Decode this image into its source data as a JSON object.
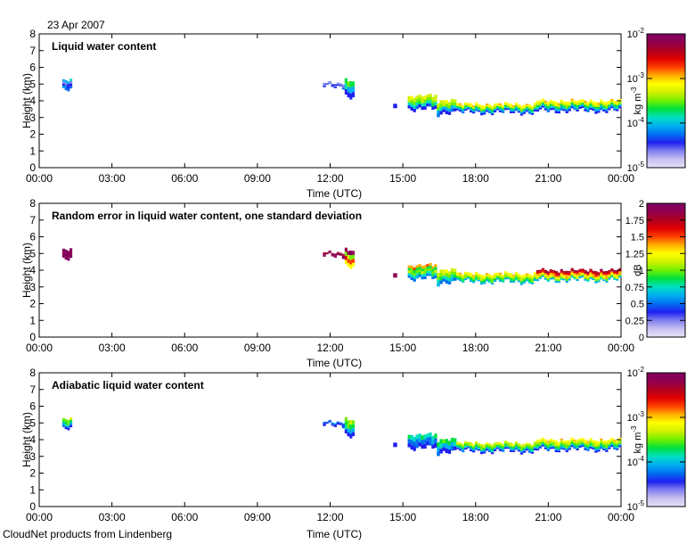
{
  "header": {
    "date": "23 Apr 2007"
  },
  "footer": {
    "credit": "CloudNet products from Lindenberg"
  },
  "colors": {
    "ramp": [
      "#e8e0f8",
      "#c8c0f0",
      "#8080f0",
      "#2020f0",
      "#0070f0",
      "#00b0f0",
      "#00e0c0",
      "#00e040",
      "#70f000",
      "#d0f000",
      "#ffff00",
      "#ffb000",
      "#ff4000",
      "#e00000",
      "#b00020",
      "#900050",
      "#800060"
    ]
  },
  "chart_data": [
    {
      "type": "heatmap",
      "title": "Liquid water content",
      "xlabel": "Time (UTC)",
      "ylabel": "Height (km)",
      "xticks": [
        "00:00",
        "03:00",
        "06:00",
        "09:00",
        "12:00",
        "15:00",
        "18:00",
        "21:00",
        "00:00"
      ],
      "xlim": [
        0,
        24
      ],
      "yticks": [
        "0",
        "1",
        "2",
        "3",
        "4",
        "5",
        "6",
        "7",
        "8"
      ],
      "ylim": [
        0,
        8
      ],
      "grid": false,
      "colorbar": {
        "label": "kg m",
        "label_exponent": "-3",
        "scale": "log",
        "range": [
          1e-05,
          0.01
        ],
        "ticks": [
          {
            "base": "10",
            "exp": "-5"
          },
          {
            "base": "10",
            "exp": "-4"
          },
          {
            "base": "10",
            "exp": "-3"
          },
          {
            "base": "10",
            "exp": "-2"
          }
        ]
      },
      "layers": [
        {
          "t_start": 0.95,
          "t_end": 1.35,
          "z_base": 4.6,
          "z_top": 5.2,
          "levels": [
            4,
            3,
            2,
            5
          ]
        },
        {
          "t_start": 11.7,
          "t_end": 12.6,
          "z_base": 4.85,
          "z_top": 5.05,
          "levels": [
            3,
            2,
            2
          ]
        },
        {
          "t_start": 12.6,
          "t_end": 13.0,
          "z_base": 4.2,
          "z_top": 5.2,
          "levels": [
            3,
            5,
            7
          ]
        },
        {
          "t_start": 14.6,
          "t_end": 14.75,
          "z_base": 3.7,
          "z_top": 3.9,
          "levels": [
            3
          ]
        },
        {
          "t_start": 15.2,
          "t_end": 16.4,
          "z_base": 3.5,
          "z_top": 4.3,
          "levels": [
            3,
            6,
            8,
            9
          ]
        },
        {
          "t_start": 16.4,
          "t_end": 17.2,
          "z_base": 3.2,
          "z_top": 4.0,
          "levels": [
            3,
            5,
            8,
            9
          ]
        },
        {
          "t_start": 17.2,
          "t_end": 20.5,
          "z_base": 3.3,
          "z_top": 3.8,
          "levels": [
            3,
            5,
            7,
            9,
            10
          ]
        },
        {
          "t_start": 20.5,
          "t_end": 24.0,
          "z_base": 3.4,
          "z_top": 4.0,
          "levels": [
            3,
            5,
            7,
            9,
            10
          ]
        }
      ]
    },
    {
      "type": "heatmap",
      "title": "Random error in liquid water content, one standard deviation",
      "xlabel": "Time (UTC)",
      "ylabel": "Height (km)",
      "xticks": [
        "00:00",
        "03:00",
        "06:00",
        "09:00",
        "12:00",
        "15:00",
        "18:00",
        "21:00",
        "00:00"
      ],
      "xlim": [
        0,
        24
      ],
      "yticks": [
        "0",
        "1",
        "2",
        "3",
        "4",
        "5",
        "6",
        "7",
        "8"
      ],
      "ylim": [
        0,
        8
      ],
      "grid": false,
      "colorbar": {
        "label": "dB",
        "label_exponent": "",
        "scale": "linear",
        "range": [
          0,
          2
        ],
        "ticks": [
          {
            "base": "0",
            "exp": ""
          },
          {
            "base": "0.25",
            "exp": ""
          },
          {
            "base": "0.5",
            "exp": ""
          },
          {
            "base": "0.75",
            "exp": ""
          },
          {
            "base": "1",
            "exp": ""
          },
          {
            "base": "1.25",
            "exp": ""
          },
          {
            "base": "1.5",
            "exp": ""
          },
          {
            "base": "1.75",
            "exp": ""
          },
          {
            "base": "2",
            "exp": ""
          }
        ]
      },
      "layers": [
        {
          "t_start": 0.95,
          "t_end": 1.35,
          "z_base": 4.6,
          "z_top": 5.2,
          "levels": [
            16,
            15,
            16
          ]
        },
        {
          "t_start": 11.7,
          "t_end": 12.6,
          "z_base": 4.85,
          "z_top": 5.05,
          "levels": [
            15,
            16,
            14
          ]
        },
        {
          "t_start": 12.6,
          "t_end": 13.0,
          "z_base": 4.2,
          "z_top": 5.2,
          "levels": [
            10,
            12,
            8,
            15
          ]
        },
        {
          "t_start": 14.6,
          "t_end": 14.75,
          "z_base": 3.7,
          "z_top": 3.9,
          "levels": [
            15
          ]
        },
        {
          "t_start": 15.2,
          "t_end": 16.4,
          "z_base": 3.5,
          "z_top": 4.3,
          "levels": [
            4,
            6,
            8,
            7,
            11
          ]
        },
        {
          "t_start": 16.4,
          "t_end": 17.2,
          "z_base": 3.2,
          "z_top": 4.0,
          "levels": [
            4,
            6,
            8,
            9
          ]
        },
        {
          "t_start": 17.2,
          "t_end": 20.5,
          "z_base": 3.3,
          "z_top": 3.8,
          "levels": [
            5,
            7,
            8,
            9,
            10
          ]
        },
        {
          "t_start": 20.5,
          "t_end": 24.0,
          "z_base": 3.4,
          "z_top": 4.0,
          "levels": [
            5,
            8,
            10,
            11,
            13,
            14
          ]
        }
      ]
    },
    {
      "type": "heatmap",
      "title": "Adiabatic liquid water content",
      "xlabel": "Time (UTC)",
      "ylabel": "Height (km)",
      "xticks": [
        "00:00",
        "03:00",
        "06:00",
        "09:00",
        "12:00",
        "15:00",
        "18:00",
        "21:00",
        "00:00"
      ],
      "xlim": [
        0,
        24
      ],
      "yticks": [
        "0",
        "1",
        "2",
        "3",
        "4",
        "5",
        "6",
        "7",
        "8"
      ],
      "ylim": [
        0,
        8
      ],
      "grid": false,
      "colorbar": {
        "label": "kg m",
        "label_exponent": "-3",
        "scale": "log",
        "range": [
          1e-05,
          0.01
        ],
        "ticks": [
          {
            "base": "10",
            "exp": "-5"
          },
          {
            "base": "10",
            "exp": "-4"
          },
          {
            "base": "10",
            "exp": "-3"
          },
          {
            "base": "10",
            "exp": "-2"
          }
        ]
      },
      "layers": [
        {
          "t_start": 0.95,
          "t_end": 1.35,
          "z_base": 4.6,
          "z_top": 5.2,
          "levels": [
            3,
            5,
            7,
            8
          ]
        },
        {
          "t_start": 11.7,
          "t_end": 12.6,
          "z_base": 4.85,
          "z_top": 5.05,
          "levels": [
            3,
            3,
            4
          ]
        },
        {
          "t_start": 12.6,
          "t_end": 13.0,
          "z_base": 4.2,
          "z_top": 5.2,
          "levels": [
            3,
            5,
            7,
            8
          ]
        },
        {
          "t_start": 14.6,
          "t_end": 14.75,
          "z_base": 3.7,
          "z_top": 3.9,
          "levels": [
            3
          ]
        },
        {
          "t_start": 15.2,
          "t_end": 16.4,
          "z_base": 3.5,
          "z_top": 4.3,
          "levels": [
            3,
            4,
            6
          ]
        },
        {
          "t_start": 16.4,
          "t_end": 17.2,
          "z_base": 3.2,
          "z_top": 4.0,
          "levels": [
            3,
            5,
            7
          ]
        },
        {
          "t_start": 17.2,
          "t_end": 20.5,
          "z_base": 3.3,
          "z_top": 3.8,
          "levels": [
            3,
            5,
            7,
            8,
            9
          ]
        },
        {
          "t_start": 20.5,
          "t_end": 24.0,
          "z_base": 3.4,
          "z_top": 4.0,
          "levels": [
            3,
            5,
            7,
            8,
            9,
            10
          ]
        }
      ]
    }
  ]
}
